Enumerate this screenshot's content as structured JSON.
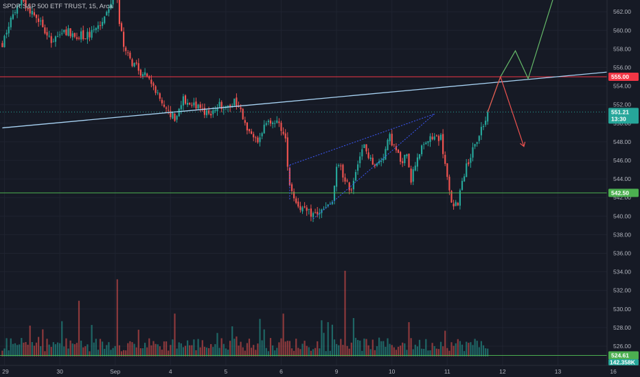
{
  "colors": {
    "background": "#161a25",
    "up": "#26a69a",
    "down": "#ef5350",
    "trendline": "#a9d4f5",
    "resistance": "#f23645",
    "support": "#4caf50",
    "wedge": "#3d5afe",
    "bull_path": "#66bb6a",
    "bear_path": "#ef5350",
    "axis_text": "#b2b5be"
  },
  "chart_data": {
    "type": "candlestick",
    "title": "SPDR S&P 500 ETF TRUST, 15, Arca",
    "symbol_title": "SPDR S&P 500 ETF TRUST",
    "interval": "15",
    "exchange": "Arca",
    "xlabel": "",
    "ylabel": "",
    "ylim": [
      522.2,
      563.9
    ],
    "x_ticks": [
      "29",
      "30",
      "Sep",
      "4",
      "5",
      "6",
      "9",
      "10",
      "11",
      "12",
      "13",
      "16"
    ],
    "x_tick_times": [
      0,
      26,
      52,
      78,
      104,
      130,
      156,
      182,
      208,
      234,
      260,
      286
    ],
    "y_ticks": [
      "526.00",
      "528.00",
      "530.00",
      "532.00",
      "534.00",
      "536.00",
      "538.00",
      "540.00",
      "542.00",
      "544.00",
      "546.00",
      "548.00",
      "550.00",
      "552.00",
      "554.00",
      "556.00",
      "558.00",
      "560.00",
      "562.00"
    ],
    "y_tick_values": [
      526,
      528,
      530,
      532,
      534,
      536,
      538,
      540,
      542,
      544,
      546,
      548,
      550,
      552,
      554,
      556,
      558,
      560,
      562
    ],
    "anchors": [
      [
        -1,
        558.5
      ],
      [
        3,
        561.5
      ],
      [
        8,
        563.0
      ],
      [
        12,
        562.0
      ],
      [
        18,
        560.5
      ],
      [
        22,
        558.5
      ],
      [
        28,
        560.0
      ],
      [
        34,
        559.5
      ],
      [
        40,
        559.5
      ],
      [
        46,
        561.0
      ],
      [
        50,
        563.0
      ],
      [
        53,
        563.6
      ],
      [
        54,
        561.0
      ],
      [
        56,
        558.0
      ],
      [
        60,
        556.5
      ],
      [
        64,
        555.5
      ],
      [
        68,
        555.0
      ],
      [
        72,
        553.0
      ],
      [
        76,
        551.5
      ],
      [
        80,
        550.5
      ],
      [
        84,
        552.5
      ],
      [
        88,
        552.0
      ],
      [
        92,
        551.5
      ],
      [
        96,
        551.0
      ],
      [
        100,
        552.0
      ],
      [
        104,
        551.5
      ],
      [
        108,
        552.5
      ],
      [
        111,
        551.5
      ],
      [
        115,
        549.0
      ],
      [
        118,
        548.0
      ],
      [
        122,
        549.5
      ],
      [
        126,
        550.5
      ],
      [
        130,
        549.5
      ],
      [
        132,
        548.0
      ],
      [
        134,
        543.5
      ],
      [
        137,
        541.5
      ],
      [
        141,
        540.5
      ],
      [
        145,
        540.2
      ],
      [
        149,
        540.5
      ],
      [
        152,
        541.0
      ],
      [
        154,
        541.5
      ],
      [
        156,
        545.0
      ],
      [
        158,
        545.5
      ],
      [
        160,
        543.5
      ],
      [
        163,
        543.0
      ],
      [
        166,
        546.0
      ],
      [
        169,
        547.5
      ],
      [
        172,
        546.0
      ],
      [
        175,
        545.5
      ],
      [
        178,
        546.5
      ],
      [
        181,
        548.5
      ],
      [
        184,
        547.0
      ],
      [
        187,
        545.5
      ],
      [
        189,
        547.0
      ],
      [
        191,
        544.0
      ],
      [
        194,
        546.5
      ],
      [
        198,
        548.0
      ],
      [
        202,
        548.5
      ],
      [
        205,
        548.5
      ],
      [
        207,
        545.5
      ],
      [
        209,
        542.5
      ],
      [
        211,
        540.8
      ],
      [
        213,
        541.5
      ],
      [
        215,
        544.0
      ],
      [
        218,
        546.0
      ],
      [
        221,
        547.5
      ],
      [
        224,
        549.5
      ],
      [
        226,
        550.2
      ],
      [
        227,
        551.21
      ]
    ],
    "last_price": 551.21,
    "last_price_label": "551.21",
    "countdown_label": "13:30",
    "volume_last_label": "142.358K",
    "volume_sma_label": "524.61",
    "volume_sma_level": 524.61,
    "horizontal_levels": [
      {
        "name": "resistance",
        "price": 555.0,
        "label": "555.00"
      },
      {
        "name": "support",
        "price": 542.5,
        "label": "542.50"
      }
    ],
    "trendline": {
      "points": [
        [
          -1,
          549.5
        ],
        [
          297,
          555.8
        ]
      ]
    },
    "rising_wedge": {
      "upper": [
        [
          134,
          545.5
        ],
        [
          202,
          551.0
        ]
      ],
      "lower": [
        [
          145,
          539.7
        ],
        [
          202,
          551.0
        ]
      ]
    },
    "projections": [
      {
        "name": "bullish",
        "points": [
          [
            227,
            551.21
          ],
          [
            233,
            555.0
          ],
          [
            240,
            557.8
          ],
          [
            246,
            554.8
          ],
          [
            258,
            563.6
          ]
        ]
      },
      {
        "name": "bearish",
        "points": [
          [
            227,
            551.21
          ],
          [
            233,
            555.0
          ],
          [
            244,
            547.5
          ]
        ]
      }
    ],
    "volume_spikes": [
      [
        53,
        9.0
      ],
      [
        131,
        5.0
      ],
      [
        160,
        10.0
      ],
      [
        80,
        5.0
      ],
      [
        190,
        4.0
      ],
      [
        207,
        3.0
      ],
      [
        35,
        6.5
      ]
    ]
  }
}
